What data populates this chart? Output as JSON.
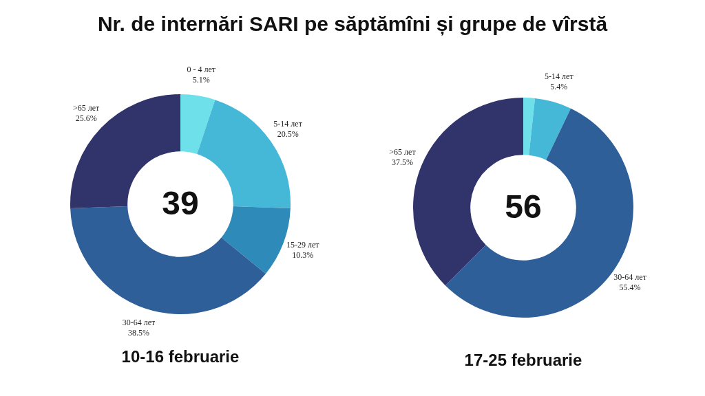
{
  "chart_data": [
    {
      "type": "donut",
      "title": "Nr. de internări SARI pe săptămîni și grupe de vîrstă",
      "xlabel": "10-16 februarie",
      "annotations": [
        "39"
      ],
      "categories": [
        "0 - 4 лет",
        "5-14 лет",
        "15-29 лет",
        "30-64 лет",
        ">65 лет"
      ],
      "values": [
        5.1,
        20.5,
        10.3,
        38.5,
        25.6
      ],
      "value_labels": [
        "5.1%",
        "20.5%",
        "10.3%",
        "38.5%",
        "25.6%"
      ],
      "colors": [
        "#6ee0ea",
        "#45b8d8",
        "#2e8ab8",
        "#2e5f98",
        "#31346b"
      ],
      "legend": false
    },
    {
      "type": "donut",
      "xlabel": "17-25 februarie",
      "annotations": [
        "56"
      ],
      "categories": [
        null,
        "5-14 лет",
        "30-64 лет",
        ">65 лет"
      ],
      "values": [
        1.7,
        5.4,
        55.4,
        37.5
      ],
      "value_labels": [
        null,
        "5.4%",
        "55.4%",
        "37.5%"
      ],
      "colors": [
        "#6ee0ea",
        "#45b8d8",
        "#2e5f98",
        "#31346b"
      ],
      "legend": false
    }
  ]
}
